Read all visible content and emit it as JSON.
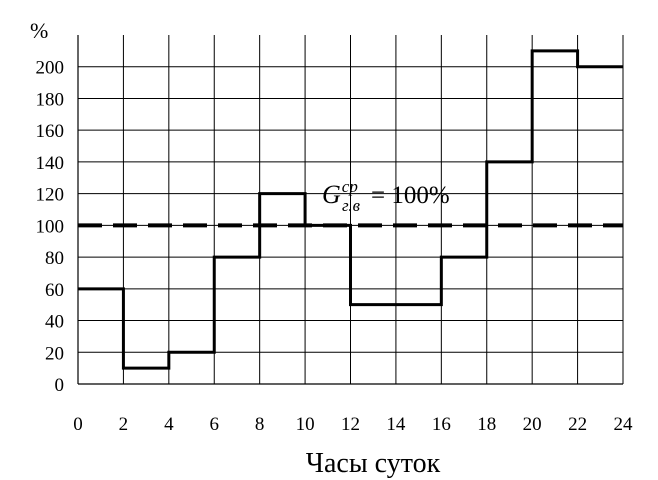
{
  "chart_data": {
    "type": "line",
    "step": true,
    "x": [
      0,
      2,
      4,
      6,
      8,
      10,
      12,
      14,
      16,
      18,
      20,
      22,
      24
    ],
    "series": [
      {
        "values": [
          60,
          10,
          20,
          80,
          120,
          100,
          50,
          50,
          80,
          140,
          210,
          200,
          200
        ],
        "color": "#000000"
      }
    ],
    "reference_line": {
      "y": 100,
      "style": "dashed",
      "color": "#000000"
    },
    "annotation": {
      "base": "G",
      "sup": "ср",
      "sub": "г.в",
      "equals": "= 100%"
    },
    "xlabel": "Часы суток",
    "ylabel": "%",
    "xlim": [
      0,
      24
    ],
    "ylim": [
      0,
      220
    ],
    "x_ticks": [
      "0",
      "2",
      "4",
      "6",
      "8",
      "10",
      "12",
      "14",
      "16",
      "18",
      "20",
      "22",
      "24"
    ],
    "y_ticks": [
      "0",
      "20",
      "40",
      "60",
      "80",
      "100",
      "120",
      "140",
      "160",
      "180",
      "200"
    ],
    "grid": true
  }
}
